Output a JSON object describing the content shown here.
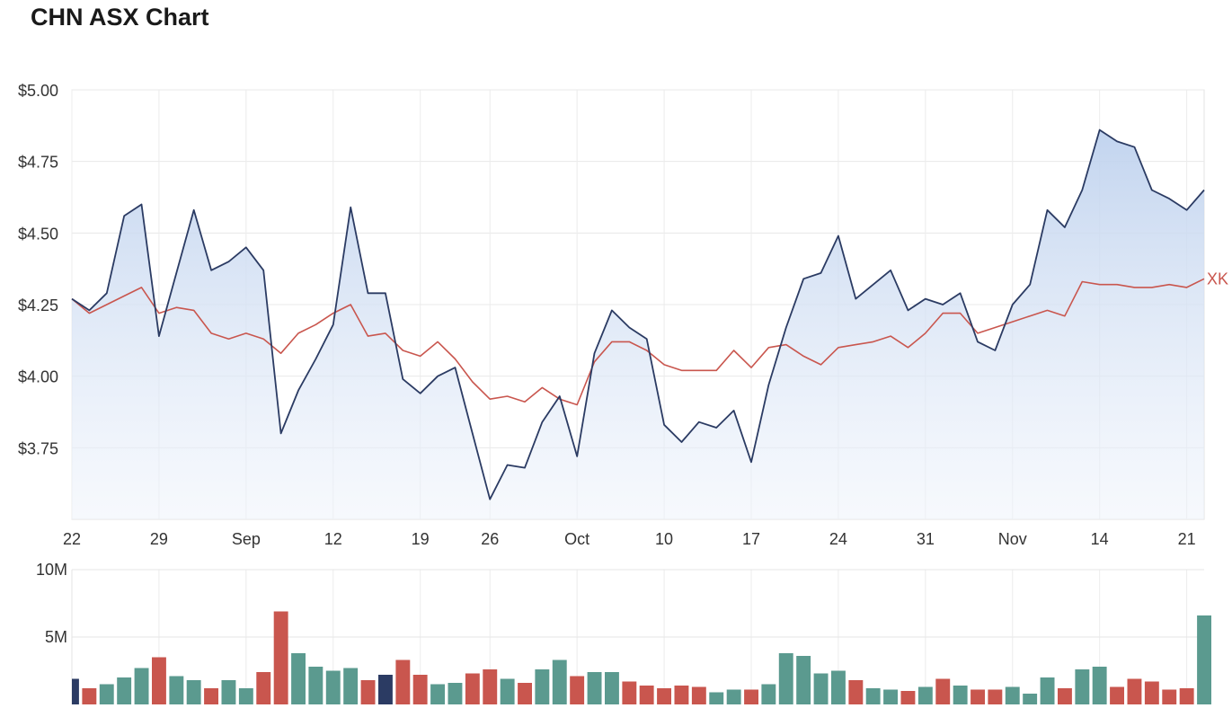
{
  "page": {
    "title": "CHN ASX Chart"
  },
  "chart_data": [
    {
      "type": "area",
      "title": "CHN ASX Chart",
      "yticks": [
        "$5.00",
        "$4.75",
        "$4.50",
        "$4.25",
        "$4.00",
        "$3.75"
      ],
      "ytick_values": [
        5.0,
        4.75,
        4.5,
        4.25,
        4.0,
        3.75
      ],
      "ylim": [
        3.5,
        5.0
      ],
      "xticks": [
        {
          "label": "22",
          "index": 0
        },
        {
          "label": "29",
          "index": 5
        },
        {
          "label": "Sep",
          "index": 10
        },
        {
          "label": "12",
          "index": 15
        },
        {
          "label": "19",
          "index": 20
        },
        {
          "label": "26",
          "index": 24
        },
        {
          "label": "Oct",
          "index": 29
        },
        {
          "label": "10",
          "index": 34
        },
        {
          "label": "17",
          "index": 39
        },
        {
          "label": "24",
          "index": 44
        },
        {
          "label": "31",
          "index": 49
        },
        {
          "label": "Nov",
          "index": 54
        },
        {
          "label": "14",
          "index": 59
        },
        {
          "label": "21",
          "index": 64
        }
      ],
      "grid": true,
      "series": [
        {
          "role": "price",
          "color": "#2b3b63",
          "fill": "#c5d6ef",
          "values": [
            4.27,
            4.23,
            4.29,
            4.56,
            4.6,
            4.14,
            4.36,
            4.58,
            4.37,
            4.4,
            4.45,
            4.37,
            3.8,
            3.95,
            4.06,
            4.18,
            4.59,
            4.29,
            4.29,
            3.99,
            3.94,
            4.0,
            4.03,
            3.8,
            3.57,
            3.69,
            3.68,
            3.84,
            3.93,
            3.72,
            4.08,
            4.23,
            4.17,
            4.13,
            3.83,
            3.77,
            3.84,
            3.82,
            3.88,
            3.7,
            3.97,
            4.17,
            4.34,
            4.36,
            4.49,
            4.27,
            4.32,
            4.37,
            4.23,
            4.27,
            4.25,
            4.29,
            4.12,
            4.09,
            4.25,
            4.32,
            4.58,
            4.52,
            4.65,
            4.86,
            4.82,
            4.8,
            4.65,
            4.62,
            4.58,
            4.65
          ]
        },
        {
          "name": "XK",
          "role": "index",
          "color": "#c9564e",
          "values": [
            4.27,
            4.22,
            4.25,
            4.28,
            4.31,
            4.22,
            4.24,
            4.23,
            4.15,
            4.13,
            4.15,
            4.13,
            4.08,
            4.15,
            4.18,
            4.22,
            4.25,
            4.14,
            4.15,
            4.09,
            4.07,
            4.12,
            4.06,
            3.98,
            3.92,
            3.93,
            3.91,
            3.96,
            3.92,
            3.9,
            4.05,
            4.12,
            4.12,
            4.09,
            4.04,
            4.02,
            4.02,
            4.02,
            4.09,
            4.03,
            4.1,
            4.11,
            4.07,
            4.04,
            4.1,
            4.11,
            4.12,
            4.14,
            4.1,
            4.15,
            4.22,
            4.22,
            4.15,
            4.17,
            4.19,
            4.21,
            4.23,
            4.21,
            4.33,
            4.32,
            4.32,
            4.31,
            4.31,
            4.32,
            4.31,
            4.34
          ]
        }
      ]
    },
    {
      "type": "bar",
      "title": "",
      "yticks": [
        "10M",
        "5M"
      ],
      "ytick_values": [
        10,
        5
      ],
      "ylim": [
        0,
        10
      ],
      "units": "M",
      "grid": true,
      "colors": {
        "up": "#5b9a8f",
        "down": "#c9564e",
        "neutral": "#2b3b63"
      },
      "values": [
        1.9,
        1.2,
        1.5,
        2.0,
        2.7,
        3.5,
        2.1,
        1.8,
        1.2,
        1.8,
        1.2,
        2.4,
        6.9,
        3.8,
        2.8,
        2.5,
        2.7,
        1.8,
        2.2,
        3.3,
        2.2,
        1.5,
        1.6,
        2.3,
        2.6,
        1.9,
        1.6,
        2.6,
        3.3,
        2.1,
        2.4,
        2.4,
        1.7,
        1.4,
        1.2,
        1.4,
        1.3,
        0.9,
        1.1,
        1.1,
        1.5,
        3.8,
        3.6,
        2.3,
        2.5,
        1.8,
        1.2,
        1.1,
        1.0,
        1.3,
        1.9,
        1.4,
        1.1,
        1.1,
        1.3,
        0.8,
        2.0,
        1.2,
        2.6,
        2.8,
        1.3,
        1.9,
        1.7,
        1.1,
        1.2,
        6.6
      ],
      "directions": [
        "n",
        "d",
        "u",
        "u",
        "u",
        "d",
        "u",
        "u",
        "d",
        "u",
        "u",
        "d",
        "d",
        "u",
        "u",
        "u",
        "u",
        "d",
        "n",
        "d",
        "d",
        "u",
        "u",
        "d",
        "d",
        "u",
        "d",
        "u",
        "u",
        "d",
        "u",
        "u",
        "d",
        "d",
        "d",
        "d",
        "d",
        "u",
        "u",
        "d",
        "u",
        "u",
        "u",
        "u",
        "u",
        "d",
        "u",
        "u",
        "d",
        "u",
        "d",
        "u",
        "d",
        "d",
        "u",
        "u",
        "u",
        "d",
        "u",
        "u",
        "d",
        "d",
        "d",
        "d",
        "d",
        "u"
      ]
    }
  ]
}
